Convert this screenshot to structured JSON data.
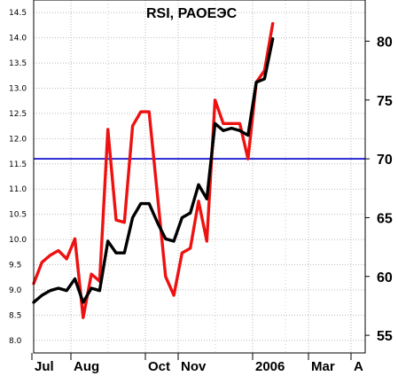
{
  "chart_data": {
    "type": "line",
    "title": "RSI, РАОЕЭС",
    "x_labels": [
      "Jul",
      "Aug",
      "Oct",
      "Nov",
      "2006",
      "Mar",
      "A"
    ],
    "left_axis": {
      "ticks": [
        "8.0",
        "8.5",
        "9.0",
        "9.5",
        "10.0",
        "10.5",
        "11.0",
        "11.5",
        "12.0",
        "12.5",
        "13.0",
        "13.5",
        "14.0",
        "14.5"
      ],
      "range": [
        7.75,
        14.75
      ]
    },
    "right_axis": {
      "ticks": [
        "55",
        "60",
        "65",
        "70",
        "75",
        "80"
      ],
      "range": [
        53.5,
        83.5
      ]
    },
    "grid": true,
    "reference_line": {
      "value": 70,
      "color": "#0000cc"
    },
    "series": [
      {
        "color": "#ee1111",
        "values": [
          59.4,
          61.2,
          61.8,
          62.2,
          61.5,
          63.2,
          56.5,
          60.2,
          59.6,
          72.5,
          64.8,
          64.6,
          72.8,
          74.0,
          74.0,
          67.0,
          60.0,
          58.4,
          62.0,
          62.4,
          66.4,
          63.0,
          75.0,
          73.0,
          73.0,
          73.0,
          70.0,
          76.5,
          77.5,
          81.5
        ],
        "start_week": 0
      },
      {
        "color": "#000000",
        "values": [
          57.8,
          58.4,
          58.8,
          59.0,
          58.8,
          59.8,
          57.8,
          59.0,
          58.8,
          63.0,
          62.0,
          62.0,
          65.0,
          66.2,
          66.2,
          64.6,
          63.2,
          63.0,
          65.0,
          65.4,
          67.8,
          66.6,
          73.0,
          72.4,
          72.6,
          72.4,
          72.0,
          76.5,
          76.8,
          80.2
        ],
        "start_week": 0
      }
    ]
  }
}
